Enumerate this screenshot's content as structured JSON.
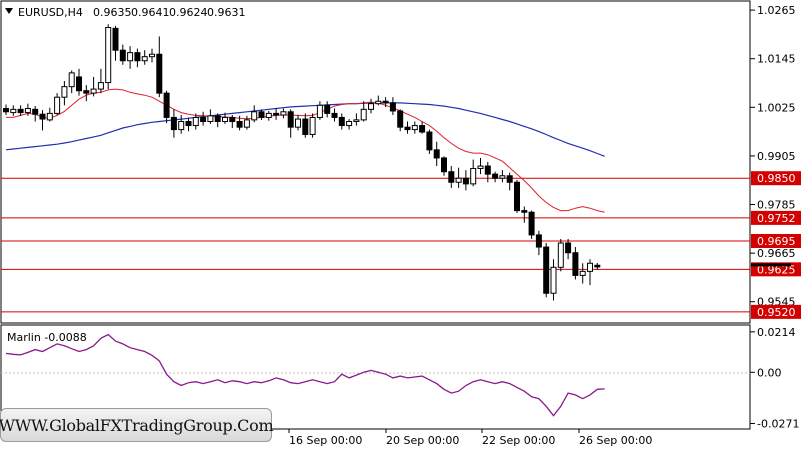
{
  "chart_data": [
    {
      "type": "candlestick",
      "title": "EURUSD,H4",
      "ohlc_header": {
        "open": "0.9635",
        "high": "0.9641",
        "low": "0.9624",
        "close": "0.9631"
      },
      "ylim": [
        0.9495,
        1.0285
      ],
      "y_ticks": [
        "1.0265",
        "1.0145",
        "1.0025",
        "0.9905",
        "0.9785",
        "0.9665",
        "0.9545"
      ],
      "x_ticks": [
        "16 Sep 00:00",
        "20 Sep 00:00",
        "22 Sep 00:00",
        "26 Sep 00:00"
      ],
      "level_lines": [
        {
          "value": 0.985,
          "label": "0.9850"
        },
        {
          "value": 0.9752,
          "label": "0.9752"
        },
        {
          "value": 0.9695,
          "label": "0.9695"
        },
        {
          "value": 0.9625,
          "label": "0.9625"
        },
        {
          "value": 0.952,
          "label": "0.9520"
        }
      ],
      "current_price": 0.9631,
      "candles": [
        [
          1.0022,
          1.0014,
          1.0032,
          1.0006
        ],
        [
          1.0012,
          1.002,
          1.003,
          1.0004
        ],
        [
          1.002,
          1.0012,
          1.003,
          1.0004
        ],
        [
          1.0012,
          1.0022,
          1.0034,
          1.0004
        ],
        [
          1.002,
          1.0008,
          1.0028,
          0.999
        ],
        [
          1.0008,
          0.9996,
          1.0018,
          0.9968
        ],
        [
          0.9994,
          1.001,
          1.0024,
          0.999
        ],
        [
          1.001,
          1.005,
          1.006,
          1.0006
        ],
        [
          1.005,
          1.0076,
          1.009,
          1.003
        ],
        [
          1.0076,
          1.011,
          1.0116,
          1.006
        ],
        [
          1.01,
          1.0066,
          1.012,
          1.0054
        ],
        [
          1.0066,
          1.006,
          1.008,
          1.004
        ],
        [
          1.006,
          1.007,
          1.01,
          1.0052
        ],
        [
          1.007,
          1.0086,
          1.012,
          1.006
        ],
        [
          1.0086,
          1.0222,
          1.023,
          1.007
        ],
        [
          1.022,
          1.0166,
          1.0226,
          1.014
        ],
        [
          1.0166,
          1.014,
          1.018,
          1.013
        ],
        [
          1.014,
          1.016,
          1.0176,
          1.012
        ],
        [
          1.016,
          1.014,
          1.017,
          1.0124
        ],
        [
          1.014,
          1.015,
          1.0166,
          1.013
        ],
        [
          1.015,
          1.0156,
          1.017,
          1.0136
        ],
        [
          1.0156,
          1.006,
          1.02,
          1.005
        ],
        [
          1.006,
          1.0,
          1.0066,
          0.9986
        ],
        [
          1.0,
          0.997,
          1.002,
          0.995
        ],
        [
          0.997,
          0.999,
          1.0006,
          0.996
        ],
        [
          0.999,
          0.998,
          1.0,
          0.9966
        ],
        [
          0.998,
          1.0,
          1.001,
          0.997
        ],
        [
          1.0,
          0.999,
          1.0014,
          0.998
        ],
        [
          0.999,
          1.0004,
          1.002,
          0.9984
        ],
        [
          1.0004,
          0.999,
          1.001,
          0.9976
        ],
        [
          0.999,
          1.0,
          1.0012,
          0.9984
        ],
        [
          1.0,
          0.999,
          1.0006,
          0.9974
        ],
        [
          0.999,
          0.9976,
          1.0004,
          0.9968
        ],
        [
          0.9976,
          0.9994,
          1.0004,
          0.997
        ],
        [
          0.9994,
          1.0014,
          1.003,
          0.9988
        ],
        [
          1.0014,
          1.0,
          1.002,
          0.9994
        ],
        [
          1.0,
          1.001,
          1.0016,
          0.9992
        ],
        [
          1.001,
          1.0006,
          1.0022,
          0.9994
        ],
        [
          1.0006,
          1.0014,
          1.0022,
          0.9998
        ],
        [
          1.0014,
          0.9976,
          1.002,
          0.995
        ],
        [
          0.9976,
          0.9996,
          1.0006,
          0.9968
        ],
        [
          0.9996,
          0.9958,
          1.001,
          0.995
        ],
        [
          0.9958,
          1.0,
          1.001,
          0.995
        ],
        [
          1.0,
          1.003,
          1.004,
          0.9994
        ],
        [
          1.003,
          1.001,
          1.004,
          1.0
        ],
        [
          1.001,
          1.0,
          1.0022,
          0.999
        ],
        [
          1.0,
          0.998,
          1.001,
          0.997
        ],
        [
          0.998,
          0.999,
          0.9996,
          0.997
        ],
        [
          0.999,
          0.9994,
          1.001,
          0.998
        ],
        [
          0.9994,
          1.002,
          1.004,
          0.999
        ],
        [
          1.002,
          1.0034,
          1.0046,
          1.001
        ],
        [
          1.0034,
          1.004,
          1.0054,
          1.003
        ],
        [
          1.004,
          1.0036,
          1.005,
          1.0026
        ],
        [
          1.0036,
          1.0016,
          1.005,
          1.0006
        ],
        [
          1.0016,
          0.9976,
          1.002,
          0.9966
        ],
        [
          0.9976,
          0.997,
          0.999,
          0.996
        ],
        [
          0.997,
          0.998,
          0.999,
          0.996
        ],
        [
          0.998,
          0.9964,
          0.999,
          0.996
        ],
        [
          0.9964,
          0.992,
          0.997,
          0.991
        ],
        [
          0.992,
          0.99,
          0.994,
          0.988
        ],
        [
          0.99,
          0.9866,
          0.9904,
          0.9856
        ],
        [
          0.9866,
          0.984,
          0.988,
          0.9826
        ],
        [
          0.984,
          0.985,
          0.9876,
          0.9826
        ],
        [
          0.985,
          0.9836,
          0.987,
          0.982
        ],
        [
          0.9836,
          0.9874,
          0.9896,
          0.983
        ],
        [
          0.9874,
          0.988,
          0.99,
          0.986
        ],
        [
          0.988,
          0.986,
          0.989,
          0.984
        ],
        [
          0.986,
          0.985,
          0.9866,
          0.984
        ],
        [
          0.985,
          0.9856,
          0.987,
          0.984
        ],
        [
          0.9856,
          0.984,
          0.9864,
          0.982
        ],
        [
          0.984,
          0.977,
          0.9846,
          0.9764
        ],
        [
          0.977,
          0.9766,
          0.978,
          0.974
        ],
        [
          0.9766,
          0.971,
          0.977,
          0.97
        ],
        [
          0.971,
          0.968,
          0.972,
          0.966
        ],
        [
          0.968,
          0.9566,
          0.969,
          0.9556
        ],
        [
          0.9566,
          0.963,
          0.965,
          0.9548
        ],
        [
          0.963,
          0.969,
          0.97,
          0.962
        ],
        [
          0.969,
          0.9666,
          0.97,
          0.965
        ],
        [
          0.9666,
          0.961,
          0.968,
          0.96
        ],
        [
          0.961,
          0.962,
          0.964,
          0.959
        ],
        [
          0.962,
          0.964,
          0.965,
          0.9586
        ],
        [
          0.9635,
          0.9631,
          0.9641,
          0.9624
        ]
      ],
      "ma_red": [
        1.0,
        1.0,
        1.0005,
        1.001,
        1.0008,
        1.0,
        0.9998,
        1.0005,
        1.0015,
        1.003,
        1.0045,
        1.0055,
        1.006,
        1.0062,
        1.0068,
        1.007,
        1.0068,
        1.0062,
        1.0058,
        1.0055,
        1.005,
        1.004,
        1.003,
        1.002,
        1.0012,
        1.0008,
        1.0005,
        1.0004,
        1.0003,
        1.0002,
        1.0001,
        1.0,
        0.9998,
        0.9997,
        0.9998,
        1.0,
        1.0003,
        1.0005,
        1.0006,
        1.0006,
        1.0005,
        1.0004,
        1.0005,
        1.0012,
        1.002,
        1.0028,
        1.0032,
        1.0034,
        1.0034,
        1.0036,
        1.0038,
        1.0036,
        1.003,
        1.0024,
        1.0016,
        1.0008,
        1.0,
        0.999,
        0.998,
        0.9966,
        0.995,
        0.9936,
        0.9924,
        0.9916,
        0.9912,
        0.9912,
        0.9908,
        0.99,
        0.9892,
        0.9876,
        0.986,
        0.9844,
        0.9826,
        0.9806,
        0.979,
        0.9778,
        0.977,
        0.977,
        0.9776,
        0.978,
        0.9776,
        0.977,
        0.9766
      ],
      "ma_blue": [
        0.992,
        0.9922,
        0.9924,
        0.9926,
        0.9928,
        0.993,
        0.9932,
        0.9934,
        0.9937,
        0.994,
        0.9944,
        0.9948,
        0.9952,
        0.9956,
        0.9962,
        0.9968,
        0.9974,
        0.9978,
        0.9982,
        0.9985,
        0.9988,
        0.999,
        0.9992,
        0.9994,
        0.9996,
        0.9998,
        1.0,
        1.0002,
        1.0004,
        1.0006,
        1.0008,
        1.001,
        1.0012,
        1.0014,
        1.0016,
        1.0018,
        1.002,
        1.0022,
        1.0024,
        1.0026,
        1.0027,
        1.0028,
        1.0029,
        1.003,
        1.0031,
        1.0032,
        1.0033,
        1.0034,
        1.0034,
        1.0035,
        1.0036,
        1.0036,
        1.0036,
        1.0036,
        1.0036,
        1.0035,
        1.0034,
        1.0033,
        1.0032,
        1.003,
        1.0028,
        1.0025,
        1.0022,
        1.0018,
        1.0014,
        1.001,
        1.0005,
        1.0,
        0.9995,
        0.999,
        0.9984,
        0.9978,
        0.9972,
        0.9965,
        0.9958,
        0.995,
        0.9943,
        0.9936,
        0.993,
        0.9924,
        0.9918,
        0.9911,
        0.9904
      ]
    },
    {
      "type": "line",
      "title": "Marlin -0.0088",
      "ylim": [
        -0.0295,
        0.0245
      ],
      "y_ticks": [
        "0.0214",
        "0.00",
        "-0.0271"
      ],
      "values": [
        0.01,
        0.0095,
        0.0092,
        0.0105,
        0.012,
        0.011,
        0.013,
        0.015,
        0.014,
        0.0125,
        0.011,
        0.012,
        0.014,
        0.018,
        0.02,
        0.0165,
        0.015,
        0.013,
        0.012,
        0.011,
        0.009,
        0.006,
        -0.001,
        -0.005,
        -0.007,
        -0.0055,
        -0.005,
        -0.006,
        -0.005,
        -0.004,
        -0.0055,
        -0.0045,
        -0.005,
        -0.006,
        -0.005,
        -0.0055,
        -0.0045,
        -0.003,
        -0.004,
        -0.0055,
        -0.006,
        -0.005,
        -0.004,
        -0.005,
        -0.006,
        -0.005,
        -0.001,
        -0.003,
        -0.0015,
        0.0,
        0.001,
        0.0,
        -0.001,
        -0.003,
        -0.002,
        -0.003,
        -0.0025,
        -0.002,
        -0.004,
        -0.006,
        -0.009,
        -0.011,
        -0.01,
        -0.007,
        -0.005,
        -0.004,
        -0.005,
        -0.006,
        -0.005,
        -0.006,
        -0.008,
        -0.01,
        -0.013,
        -0.014,
        -0.018,
        -0.023,
        -0.018,
        -0.011,
        -0.012,
        -0.014,
        -0.012,
        -0.009,
        -0.0088
      ]
    }
  ],
  "watermark": "WWW.GlobalFXTradingGroup.Com",
  "colors": {
    "candle": "#000000",
    "ma_red": "#e0202a",
    "ma_blue": "#1f2fb0",
    "level_line": "#d40000",
    "label_bg": "#d40000",
    "oscillator": "#8a1a8a",
    "current_bg": "#000000"
  },
  "icons": {
    "symbol_menu": "triangle-down-icon"
  }
}
